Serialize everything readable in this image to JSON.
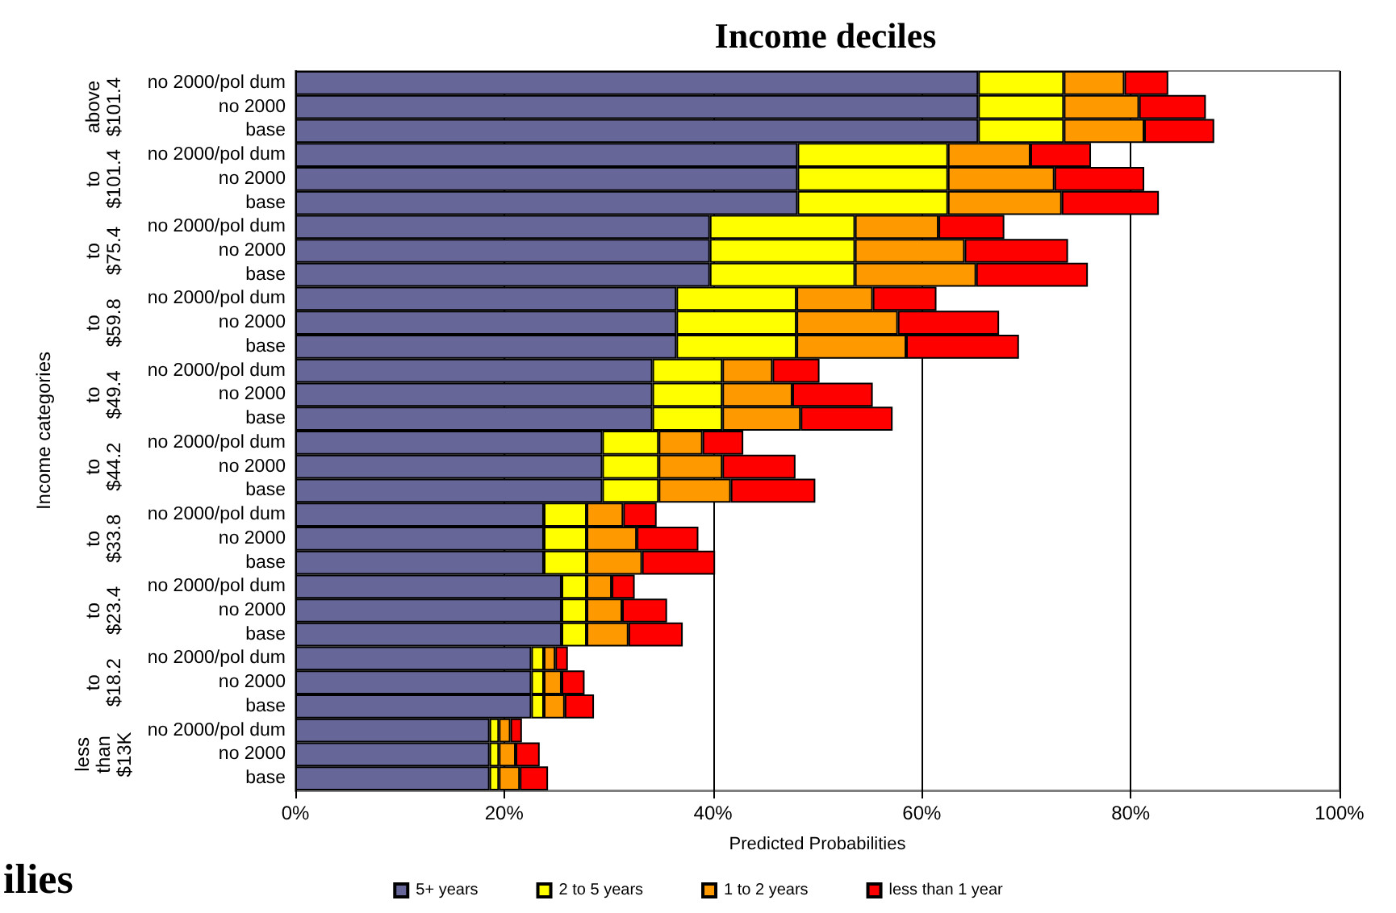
{
  "chart_data": {
    "type": "bar",
    "orientation": "horizontal",
    "stacked": true,
    "title": "Income deciles",
    "xlabel": "Predicted Probabilities",
    "ylabel": "Income categories",
    "categories": [
      "no 2000/pol dum",
      "no 2000",
      "base",
      "no 2000/pol dum",
      "no 2000",
      "base",
      "no 2000/pol dum",
      "no 2000",
      "base",
      "no 2000/pol dum",
      "no 2000",
      "base",
      "no 2000/pol dum",
      "no 2000",
      "base",
      "no 2000/pol dum",
      "no 2000",
      "base",
      "no 2000/pol dum",
      "no 2000",
      "base",
      "no 2000/pol dum",
      "no 2000",
      "base",
      "no 2000/pol dum",
      "no 2000",
      "base",
      "no 2000/pol dum",
      "no 2000",
      "base"
    ],
    "series": [
      {
        "name": "5+ years",
        "color": "#666699",
        "values": [
          65.4,
          65.4,
          65.4,
          48.1,
          48.1,
          48.1,
          39.7,
          39.7,
          39.7,
          36.5,
          36.5,
          36.5,
          34.2,
          34.2,
          34.2,
          29.4,
          29.4,
          29.4,
          23.8,
          23.8,
          23.8,
          25.5,
          25.5,
          25.5,
          22.6,
          22.6,
          22.6,
          18.6,
          18.6,
          18.6
        ]
      },
      {
        "name": "2 to 5 years",
        "color": "#ffff00",
        "values": [
          8.2,
          8.2,
          8.2,
          14.4,
          14.4,
          14.4,
          13.9,
          13.9,
          13.9,
          11.5,
          11.5,
          11.5,
          6.7,
          6.7,
          6.7,
          5.4,
          5.4,
          5.4,
          4.1,
          4.1,
          4.1,
          2.4,
          2.4,
          2.4,
          1.2,
          1.2,
          1.2,
          0.9,
          0.9,
          0.9
        ]
      },
      {
        "name": "1 to 2 years",
        "color": "#ff9900",
        "values": [
          5.8,
          7.2,
          7.7,
          7.9,
          10.2,
          10.9,
          8.0,
          10.5,
          11.6,
          7.3,
          9.7,
          10.5,
          4.8,
          6.7,
          7.5,
          4.2,
          6.1,
          6.9,
          3.5,
          4.8,
          5.3,
          2.4,
          3.4,
          4.0,
          1.1,
          1.7,
          2.0,
          1.1,
          1.6,
          2.0
        ]
      },
      {
        "name": "less than 1 year",
        "color": "#ff0000",
        "values": [
          4.2,
          6.4,
          6.7,
          5.8,
          8.6,
          9.3,
          6.3,
          9.9,
          10.7,
          6.1,
          9.7,
          10.8,
          4.5,
          7.7,
          8.8,
          3.9,
          7.0,
          8.1,
          3.2,
          5.9,
          7.0,
          2.2,
          4.3,
          5.2,
          1.2,
          2.2,
          2.8,
          1.1,
          2.3,
          2.7
        ]
      }
    ],
    "xlim": [
      0,
      100
    ],
    "xticks": [
      {
        "value": 0,
        "label": "0%"
      },
      {
        "value": 20,
        "label": "20%"
      },
      {
        "value": 40,
        "label": "40%"
      },
      {
        "value": 60,
        "label": "60%"
      },
      {
        "value": 80,
        "label": "80%"
      },
      {
        "value": 100,
        "label": "100%"
      }
    ],
    "grid": "x",
    "legend": "bottom",
    "annotations": [
      "above\n$101.4",
      "to\n$101.4",
      "to\n$75.4",
      "to\n$59.8",
      "to\n$49.4",
      "to\n$44.2",
      "to\n$33.8",
      "to\n$23.4",
      "to\n$18.2",
      "less\nthan\n$13K",
      "ilies"
    ]
  }
}
